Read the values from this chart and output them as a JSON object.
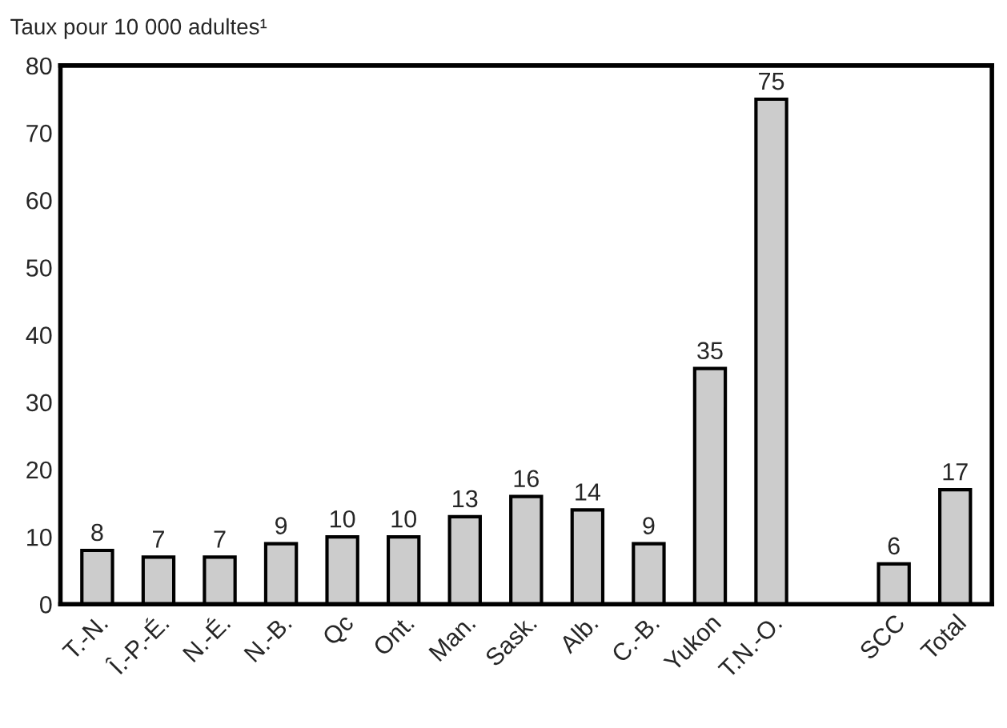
{
  "chart_data": {
    "type": "bar",
    "ylabel": "Taux pour 10 000 adultes¹",
    "categories": [
      "T.-N.",
      "Î.-P.-É.",
      "N.-É.",
      "N.-B.",
      "Qc",
      "Ont.",
      "Man.",
      "Sask.",
      "Alb.",
      "C.-B.",
      "Yukon",
      "T.N.-O.",
      null,
      "SCC",
      "Total"
    ],
    "values": [
      8,
      7,
      7,
      9,
      10,
      10,
      13,
      16,
      14,
      9,
      35,
      75,
      null,
      6,
      17
    ],
    "color": "#cccccc",
    "ylim": [
      0,
      80
    ],
    "yticks": [
      0,
      10,
      20,
      30,
      40,
      50,
      60,
      70,
      80
    ],
    "data_labels": true,
    "grid": false,
    "legend": false
  }
}
